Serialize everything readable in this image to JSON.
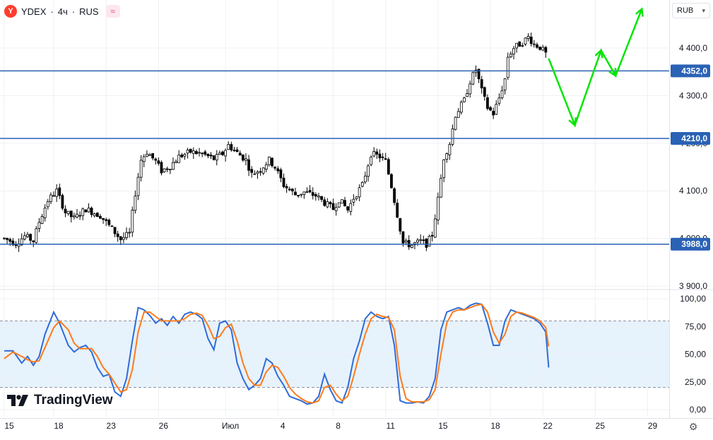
{
  "header": {
    "logo_letter": "Y",
    "symbol": "YDEX",
    "interval": "4ч",
    "exchange": "RUS",
    "separator": "·",
    "indicator_badge": "≈",
    "currency": "RUB"
  },
  "watermark": "TradingView",
  "colors": {
    "up": "#ffffff",
    "down": "#000000",
    "wick": "#000000",
    "level_line": "#2a62b5",
    "forecast": "#00e600",
    "stoch_k": "#2f6bd8",
    "stoch_d": "#ff7a1a",
    "band_fill": "#e6f2fc"
  },
  "chart_data": [
    {
      "type": "candlestick",
      "y_axis_ticks": [
        {
          "v": 3900,
          "label": "3 900,0"
        },
        {
          "v": 4000,
          "label": "4 000,0"
        },
        {
          "v": 4100,
          "label": "4 100,0"
        },
        {
          "v": 4200,
          "label": "4 200,0"
        },
        {
          "v": 4300,
          "label": "4 300,0"
        },
        {
          "v": 4400,
          "label": "4 400,0"
        }
      ],
      "ylim": [
        3888,
        4490
      ],
      "x_ticks": [
        {
          "bar": 0,
          "label": "15"
        },
        {
          "bar": 17,
          "label": "18"
        },
        {
          "bar": 35,
          "label": "23"
        },
        {
          "bar": 53,
          "label": "26"
        },
        {
          "bar": 76,
          "label": "Июл"
        },
        {
          "bar": 94,
          "label": "4"
        },
        {
          "bar": 113,
          "label": "8"
        },
        {
          "bar": 131,
          "label": "11"
        },
        {
          "bar": 149,
          "label": "15"
        },
        {
          "bar": 167,
          "label": "18"
        },
        {
          "bar": 185,
          "label": "22"
        },
        {
          "bar": 203,
          "label": "25"
        },
        {
          "bar": 221,
          "label": "29"
        }
      ],
      "levels": [
        {
          "value": 4352,
          "label": "4352,0"
        },
        {
          "value": 4210,
          "label": "4210,0"
        },
        {
          "value": 3988,
          "label": "3988,0"
        }
      ],
      "forecast_path": [
        {
          "bar": 187,
          "price": 4378
        },
        {
          "bar": 196,
          "price": 4238
        },
        {
          "bar": 205,
          "price": 4395
        },
        {
          "bar": 210,
          "price": 4342
        },
        {
          "bar": 219,
          "price": 4482
        }
      ],
      "anchors": [
        [
          0,
          4000
        ],
        [
          4,
          3990
        ],
        [
          7,
          4005
        ],
        [
          10,
          3995
        ],
        [
          12,
          4035
        ],
        [
          15,
          4080
        ],
        [
          18,
          4100
        ],
        [
          21,
          4055
        ],
        [
          24,
          4042
        ],
        [
          28,
          4062
        ],
        [
          33,
          4048
        ],
        [
          37,
          4020
        ],
        [
          40,
          3998
        ],
        [
          43,
          4010
        ],
        [
          45,
          4095
        ],
        [
          47,
          4165
        ],
        [
          49,
          4182
        ],
        [
          52,
          4162
        ],
        [
          54,
          4142
        ],
        [
          57,
          4152
        ],
        [
          60,
          4172
        ],
        [
          64,
          4182
        ],
        [
          68,
          4178
        ],
        [
          72,
          4167
        ],
        [
          75,
          4178
        ],
        [
          77,
          4196
        ],
        [
          80,
          4180
        ],
        [
          83,
          4165
        ],
        [
          85,
          4135
        ],
        [
          88,
          4145
        ],
        [
          91,
          4165
        ],
        [
          93,
          4150
        ],
        [
          96,
          4112
        ],
        [
          100,
          4092
        ],
        [
          103,
          4097
        ],
        [
          107,
          4090
        ],
        [
          110,
          4075
        ],
        [
          113,
          4062
        ],
        [
          115,
          4082
        ],
        [
          118,
          4060
        ],
        [
          120,
          4085
        ],
        [
          123,
          4112
        ],
        [
          126,
          4178
        ],
        [
          129,
          4172
        ],
        [
          131,
          4162
        ],
        [
          133,
          4110
        ],
        [
          135,
          4050
        ],
        [
          137,
          3990
        ],
        [
          140,
          3986
        ],
        [
          143,
          3994
        ],
        [
          145,
          3988
        ],
        [
          147,
          4008
        ],
        [
          149,
          4082
        ],
        [
          151,
          4170
        ],
        [
          153,
          4200
        ],
        [
          155,
          4260
        ],
        [
          158,
          4290
        ],
        [
          160,
          4330
        ],
        [
          162,
          4355
        ],
        [
          164,
          4310
        ],
        [
          166,
          4275
        ],
        [
          168,
          4262
        ],
        [
          170,
          4295
        ],
        [
          172,
          4335
        ],
        [
          173,
          4382
        ],
        [
          175,
          4400
        ],
        [
          178,
          4412
        ],
        [
          180,
          4423
        ],
        [
          182,
          4408
        ],
        [
          184,
          4402
        ],
        [
          186,
          4388
        ]
      ]
    },
    {
      "type": "line",
      "name": "Stochastic",
      "y_axis_ticks": [
        {
          "v": 0,
          "label": "0,00"
        },
        {
          "v": 25,
          "label": "25,00"
        },
        {
          "v": 50,
          "label": "50,00"
        },
        {
          "v": 75,
          "label": "75,00"
        },
        {
          "v": 100,
          "label": "100,00"
        }
      ],
      "ylim": [
        0,
        100
      ],
      "band": [
        20,
        80
      ],
      "series": [
        {
          "key": "k",
          "points": [
            [
              0,
              53
            ],
            [
              3,
              53
            ],
            [
              6,
              42
            ],
            [
              8,
              48
            ],
            [
              10,
              40
            ],
            [
              12,
              48
            ],
            [
              14,
              68
            ],
            [
              17,
              88
            ],
            [
              19,
              78
            ],
            [
              22,
              58
            ],
            [
              24,
              52
            ],
            [
              26,
              56
            ],
            [
              28,
              58
            ],
            [
              30,
              52
            ],
            [
              32,
              38
            ],
            [
              34,
              30
            ],
            [
              36,
              32
            ],
            [
              38,
              16
            ],
            [
              40,
              12
            ],
            [
              42,
              28
            ],
            [
              44,
              62
            ],
            [
              46,
              92
            ],
            [
              48,
              90
            ],
            [
              50,
              85
            ],
            [
              52,
              78
            ],
            [
              54,
              82
            ],
            [
              56,
              76
            ],
            [
              58,
              84
            ],
            [
              60,
              78
            ],
            [
              62,
              86
            ],
            [
              64,
              88
            ],
            [
              66,
              86
            ],
            [
              68,
              82
            ],
            [
              70,
              64
            ],
            [
              72,
              54
            ],
            [
              74,
              78
            ],
            [
              76,
              80
            ],
            [
              78,
              72
            ],
            [
              80,
              42
            ],
            [
              82,
              28
            ],
            [
              84,
              18
            ],
            [
              86,
              22
            ],
            [
              88,
              28
            ],
            [
              90,
              46
            ],
            [
              92,
              42
            ],
            [
              94,
              30
            ],
            [
              96,
              22
            ],
            [
              98,
              12
            ],
            [
              100,
              10
            ],
            [
              102,
              8
            ],
            [
              104,
              5
            ],
            [
              106,
              6
            ],
            [
              108,
              12
            ],
            [
              110,
              32
            ],
            [
              112,
              18
            ],
            [
              114,
              8
            ],
            [
              116,
              6
            ],
            [
              118,
              20
            ],
            [
              120,
              46
            ],
            [
              122,
              62
            ],
            [
              124,
              82
            ],
            [
              126,
              88
            ],
            [
              128,
              84
            ],
            [
              130,
              82
            ],
            [
              132,
              84
            ],
            [
              134,
              58
            ],
            [
              136,
              8
            ],
            [
              138,
              6
            ],
            [
              140,
              6
            ],
            [
              142,
              7
            ],
            [
              144,
              6
            ],
            [
              146,
              12
            ],
            [
              148,
              28
            ],
            [
              150,
              72
            ],
            [
              152,
              88
            ],
            [
              154,
              90
            ],
            [
              156,
              92
            ],
            [
              158,
              90
            ],
            [
              160,
              94
            ],
            [
              162,
              96
            ],
            [
              164,
              95
            ],
            [
              166,
              78
            ],
            [
              168,
              58
            ],
            [
              170,
              58
            ],
            [
              172,
              80
            ],
            [
              174,
              90
            ],
            [
              176,
              88
            ],
            [
              178,
              86
            ],
            [
              180,
              84
            ],
            [
              182,
              82
            ],
            [
              184,
              78
            ],
            [
              186,
              70
            ],
            [
              187,
              38
            ]
          ]
        },
        {
          "key": "d",
          "points": [
            [
              0,
              46
            ],
            [
              3,
              52
            ],
            [
              6,
              48
            ],
            [
              8,
              45
            ],
            [
              10,
              43
            ],
            [
              12,
              44
            ],
            [
              14,
              56
            ],
            [
              17,
              74
            ],
            [
              19,
              80
            ],
            [
              22,
              72
            ],
            [
              24,
              60
            ],
            [
              26,
              55
            ],
            [
              28,
              55
            ],
            [
              30,
              55
            ],
            [
              32,
              48
            ],
            [
              34,
              38
            ],
            [
              36,
              32
            ],
            [
              38,
              24
            ],
            [
              40,
              16
            ],
            [
              42,
              18
            ],
            [
              44,
              36
            ],
            [
              46,
              70
            ],
            [
              48,
              88
            ],
            [
              50,
              88
            ],
            [
              52,
              84
            ],
            [
              54,
              80
            ],
            [
              56,
              80
            ],
            [
              58,
              80
            ],
            [
              60,
              80
            ],
            [
              62,
              82
            ],
            [
              64,
              86
            ],
            [
              66,
              87
            ],
            [
              68,
              85
            ],
            [
              70,
              76
            ],
            [
              72,
              64
            ],
            [
              74,
              66
            ],
            [
              76,
              74
            ],
            [
              78,
              77
            ],
            [
              80,
              62
            ],
            [
              82,
              42
            ],
            [
              84,
              28
            ],
            [
              86,
              22
            ],
            [
              88,
              22
            ],
            [
              90,
              34
            ],
            [
              92,
              40
            ],
            [
              94,
              38
            ],
            [
              96,
              30
            ],
            [
              98,
              20
            ],
            [
              100,
              14
            ],
            [
              102,
              10
            ],
            [
              104,
              7
            ],
            [
              106,
              6
            ],
            [
              108,
              8
            ],
            [
              110,
              20
            ],
            [
              112,
              22
            ],
            [
              114,
              14
            ],
            [
              116,
              8
            ],
            [
              118,
              12
            ],
            [
              120,
              30
            ],
            [
              122,
              50
            ],
            [
              124,
              68
            ],
            [
              126,
              82
            ],
            [
              128,
              86
            ],
            [
              130,
              84
            ],
            [
              132,
              83
            ],
            [
              134,
              72
            ],
            [
              136,
              30
            ],
            [
              138,
              10
            ],
            [
              140,
              7
            ],
            [
              142,
              7
            ],
            [
              144,
              7
            ],
            [
              146,
              9
            ],
            [
              148,
              18
            ],
            [
              150,
              50
            ],
            [
              152,
              78
            ],
            [
              154,
              88
            ],
            [
              156,
              90
            ],
            [
              158,
              90
            ],
            [
              160,
              92
            ],
            [
              162,
              94
            ],
            [
              164,
              95
            ],
            [
              166,
              88
            ],
            [
              168,
              70
            ],
            [
              170,
              60
            ],
            [
              172,
              68
            ],
            [
              174,
              84
            ],
            [
              176,
              88
            ],
            [
              178,
              87
            ],
            [
              180,
              85
            ],
            [
              182,
              83
            ],
            [
              184,
              80
            ],
            [
              186,
              74
            ],
            [
              187,
              57
            ]
          ]
        }
      ]
    }
  ]
}
